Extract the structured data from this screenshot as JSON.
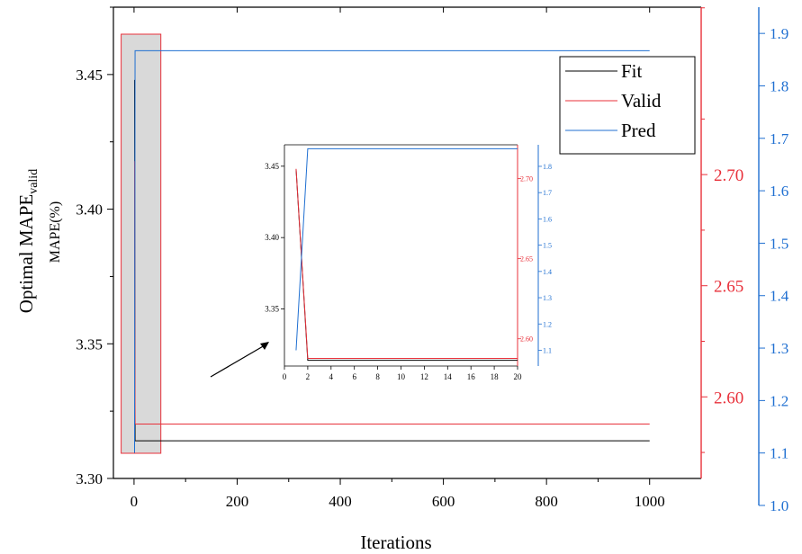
{
  "chart_data": {
    "type": "line",
    "xlabel": "Iterations",
    "ylabel": "Optimal MAPE",
    "ylabel_sub": "valid",
    "ylabel_secondary": "MAPE(%)",
    "xlim": [
      -40,
      1100
    ],
    "xticks": [
      "0",
      "200",
      "400",
      "600",
      "800",
      "1000"
    ],
    "x_tick_values": [
      0,
      200,
      400,
      600,
      800,
      1000
    ],
    "axes": {
      "left": {
        "ylim": [
          3.3,
          3.475
        ],
        "ticks": [
          "3.30",
          "3.35",
          "3.40",
          "3.45"
        ],
        "tick_values": [
          3.3,
          3.35,
          3.4,
          3.45
        ],
        "color": "#000000"
      },
      "right1": {
        "ylim": [
          2.5633,
          2.7753
        ],
        "ticks": [
          "2.60",
          "2.65",
          "2.70"
        ],
        "tick_values": [
          2.6,
          2.65,
          2.7
        ],
        "color": "#e8303a"
      },
      "right2": {
        "ylim": [
          1.0,
          1.95
        ],
        "ticks": [
          "1.0",
          "1.1",
          "1.2",
          "1.3",
          "1.4",
          "1.5",
          "1.6",
          "1.7",
          "1.8",
          "1.9"
        ],
        "tick_values": [
          1.0,
          1.1,
          1.2,
          1.3,
          1.4,
          1.5,
          1.6,
          1.7,
          1.8,
          1.9
        ],
        "color": "#1f6fd1"
      }
    },
    "series": [
      {
        "name": "Fit",
        "axis": "left",
        "color": "#000000",
        "x": [
          1,
          2,
          1000
        ],
        "y": [
          3.448,
          3.314,
          3.314
        ]
      },
      {
        "name": "Valid",
        "axis": "right1",
        "color": "#e8303a",
        "x": [
          1,
          2,
          1000
        ],
        "y": [
          2.706,
          2.5878,
          2.5878
        ]
      },
      {
        "name": "Pred",
        "axis": "right2",
        "color": "#1f6fd1",
        "x": [
          1,
          2,
          1000
        ],
        "y": [
          1.1,
          1.867,
          1.867
        ]
      }
    ],
    "highlight_region": {
      "x": [
        -25,
        52
      ]
    },
    "legend_position": "top-right",
    "inset": {
      "xlim": [
        0,
        20
      ],
      "xticks": [
        "0",
        "2",
        "4",
        "6",
        "8",
        "10",
        "12",
        "14",
        "16",
        "18",
        "20"
      ],
      "x_tick_values": [
        0,
        2,
        4,
        6,
        8,
        10,
        12,
        14,
        16,
        18,
        20
      ],
      "left": {
        "ylim": [
          3.31,
          3.465
        ],
        "ticks": [
          "3.35",
          "3.40",
          "3.45"
        ],
        "tick_values": [
          3.35,
          3.4,
          3.45
        ]
      },
      "right1": {
        "ylim": [
          2.583,
          2.721
        ],
        "ticks": [
          "2.60",
          "2.65",
          "2.70"
        ],
        "tick_values": [
          2.6,
          2.65,
          2.7
        ]
      },
      "right2": {
        "ylim": [
          1.04,
          1.882
        ],
        "ticks": [
          "1.1",
          "1.2",
          "1.3",
          "1.4",
          "1.5",
          "1.6",
          "1.7",
          "1.8"
        ],
        "tick_values": [
          1.1,
          1.2,
          1.3,
          1.4,
          1.5,
          1.6,
          1.7,
          1.8
        ]
      },
      "series": [
        {
          "name": "Fit",
          "axis": "left",
          "x": [
            1,
            2,
            20
          ],
          "y": [
            3.448,
            3.314,
            3.314
          ]
        },
        {
          "name": "Valid",
          "axis": "right1",
          "x": [
            1,
            2,
            20
          ],
          "y": [
            2.706,
            2.5878,
            2.5878
          ]
        },
        {
          "name": "Pred",
          "axis": "right2",
          "x": [
            1,
            2,
            20
          ],
          "y": [
            1.1,
            1.867,
            1.867
          ]
        }
      ]
    }
  }
}
